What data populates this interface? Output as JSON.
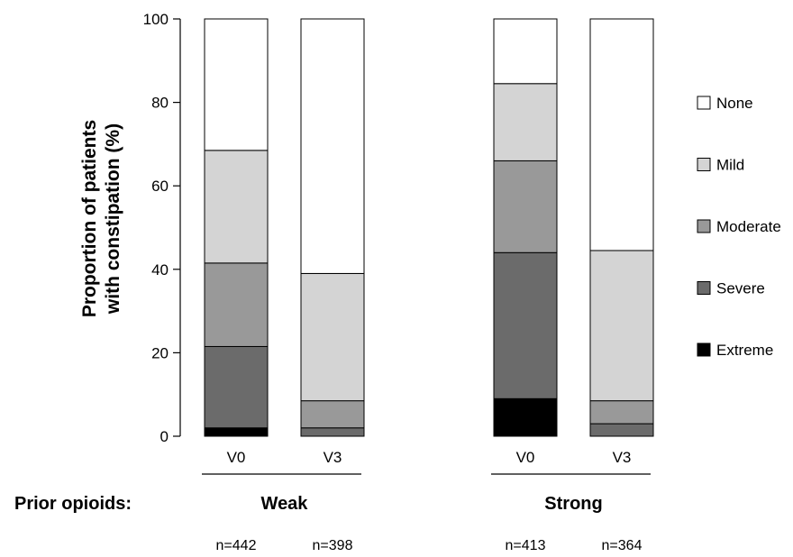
{
  "chart_data": {
    "type": "bar",
    "stacked": true,
    "ylabel_lines": [
      "Proportion of patients",
      "with constipation (%)"
    ],
    "ylim": [
      0,
      100
    ],
    "yticks": [
      0,
      20,
      40,
      60,
      80,
      100
    ],
    "row_label": "Prior opioids:",
    "groups": [
      {
        "label": "Weak",
        "bars": [
          0,
          1
        ]
      },
      {
        "label": "Strong",
        "bars": [
          2,
          3
        ]
      }
    ],
    "categories": [
      "V0",
      "V3",
      "V0",
      "V3"
    ],
    "n_labels": [
      "n=442",
      "n=398",
      "n=413",
      "n=364"
    ],
    "series": [
      {
        "name": "Extreme",
        "color": "#000000",
        "values": [
          2,
          0,
          9,
          0
        ]
      },
      {
        "name": "Severe",
        "color": "#6b6b6b",
        "values": [
          19.5,
          2,
          35,
          3
        ]
      },
      {
        "name": "Moderate",
        "color": "#999999",
        "values": [
          20,
          6.5,
          22,
          5.5
        ]
      },
      {
        "name": "Mild",
        "color": "#d4d4d4",
        "values": [
          27,
          30.5,
          18.5,
          36
        ]
      },
      {
        "name": "None",
        "color": "#ffffff",
        "values": [
          31.5,
          61,
          15.5,
          55.5
        ]
      }
    ],
    "legend_position": "right",
    "grid": false
  }
}
